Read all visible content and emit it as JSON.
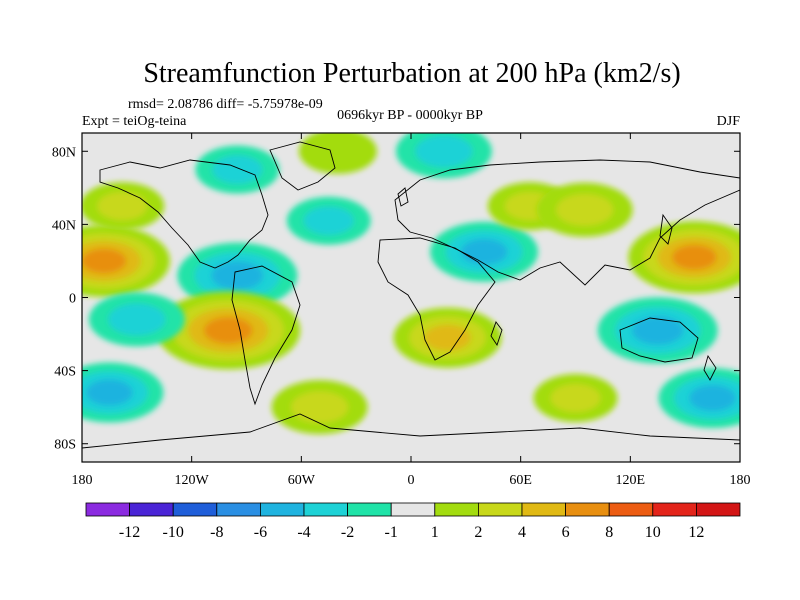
{
  "chart_data": {
    "type": "heatmap",
    "title": "Streamfunction Perturbation at 200 hPa (km2/s)",
    "stats_line": "rmsd= 2.08786 diff= -5.75978e-09",
    "experiment": "Expt = teiOg-teina",
    "period": "0696kyr BP - 0000kyr BP",
    "season": "DJF",
    "x_ticks": [
      {
        "value": -180,
        "label": "180"
      },
      {
        "value": -120,
        "label": "120W"
      },
      {
        "value": -60,
        "label": "60W"
      },
      {
        "value": 0,
        "label": "0"
      },
      {
        "value": 60,
        "label": "60E"
      },
      {
        "value": 120,
        "label": "120E"
      },
      {
        "value": 180,
        "label": "180"
      }
    ],
    "y_ticks": [
      {
        "value": 80,
        "label": "80N"
      },
      {
        "value": 40,
        "label": "40N"
      },
      {
        "value": 0,
        "label": "0"
      },
      {
        "value": -40,
        "label": "40S"
      },
      {
        "value": -80,
        "label": "80S"
      }
    ],
    "lon_range": [
      -180,
      180
    ],
    "lat_range": [
      -90,
      90
    ],
    "colorbar": {
      "levels": [
        "-12",
        "-10",
        "-8",
        "-6",
        "-4",
        "-2",
        "-1",
        "1",
        "2",
        "4",
        "6",
        "8",
        "10",
        "12"
      ],
      "colors": [
        "#8b2be0",
        "#4a24d6",
        "#1f5ed9",
        "#2a8fe3",
        "#1fb3df",
        "#1ed2d6",
        "#20e3a8",
        "#e6e6e6",
        "#a3dc0f",
        "#c8d81a",
        "#e0b914",
        "#e88f10",
        "#ec5c12",
        "#e3241a",
        "#d31515"
      ]
    },
    "anomalies": [
      {
        "lon": -168,
        "lat": 20,
        "value": 6
      },
      {
        "lon": -95,
        "lat": 12,
        "value": -5
      },
      {
        "lon": -100,
        "lat": -18,
        "value": 7
      },
      {
        "lon": -150,
        "lat": -12,
        "value": -3
      },
      {
        "lon": -165,
        "lat": -52,
        "value": -4
      },
      {
        "lon": -158,
        "lat": 50,
        "value": 2
      },
      {
        "lon": -45,
        "lat": 42,
        "value": -2
      },
      {
        "lon": -40,
        "lat": 80,
        "value": 1.5
      },
      {
        "lon": 18,
        "lat": 80,
        "value": -3
      },
      {
        "lon": 40,
        "lat": 25,
        "value": -4
      },
      {
        "lon": 65,
        "lat": 50,
        "value": 2
      },
      {
        "lon": 95,
        "lat": 48,
        "value": 3
      },
      {
        "lon": 155,
        "lat": 22,
        "value": 6
      },
      {
        "lon": 135,
        "lat": -18,
        "value": -5
      },
      {
        "lon": 20,
        "lat": -22,
        "value": 4
      },
      {
        "lon": -50,
        "lat": -60,
        "value": 3
      },
      {
        "lon": 165,
        "lat": -55,
        "value": -4
      },
      {
        "lon": -95,
        "lat": 70,
        "value": -2
      },
      {
        "lon": 90,
        "lat": -55,
        "value": 2
      }
    ]
  }
}
